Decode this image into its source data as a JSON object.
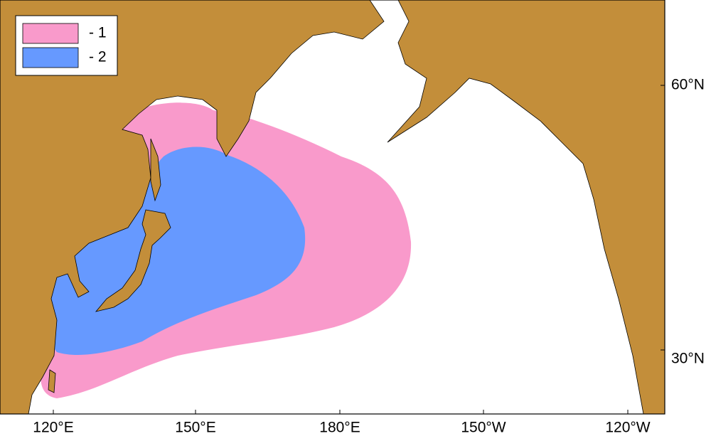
{
  "legend": [
    {
      "label": "- 1",
      "color": "#f99acb"
    },
    {
      "label": "- 2",
      "color": "#6699ff"
    }
  ],
  "axes": {
    "bottom": [
      "120°E",
      "150°E",
      "180°E",
      "150°W",
      "120°W"
    ],
    "right": [
      "60°N",
      "30°N"
    ]
  }
}
